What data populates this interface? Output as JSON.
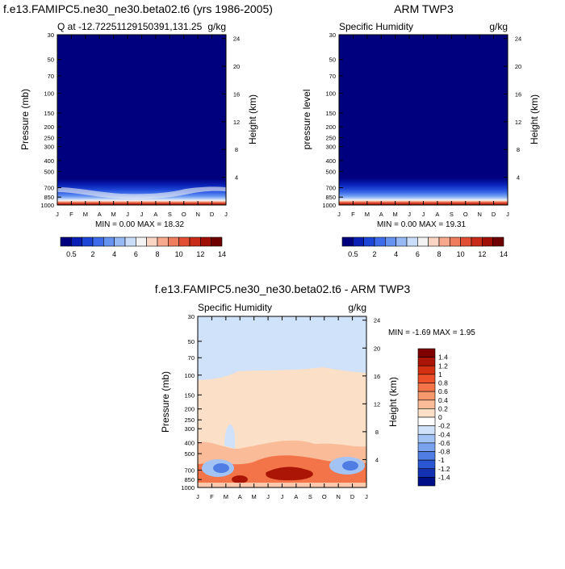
{
  "chart_data": [
    {
      "type": "heatmap",
      "title": "f.e13.FAMIPC5.ne30_ne30.beta02.t6 (yrs 1986-2005)",
      "left_label": "Q at -12.72251129150391,131.25",
      "right_label": "g/kg",
      "ylabel": "Pressure (mb)",
      "ylabel_right": "Height (km)",
      "months": [
        "J",
        "F",
        "M",
        "A",
        "M",
        "J",
        "J",
        "A",
        "S",
        "O",
        "N",
        "D",
        "J"
      ],
      "pressure_ticks": [
        "30",
        "50",
        "70",
        "100",
        "150",
        "200",
        "250",
        "300",
        "400",
        "500",
        "700",
        "850",
        "1000"
      ],
      "height_ticks": [
        "24",
        "20",
        "16",
        "12",
        "8",
        "4"
      ],
      "minmax": "MIN =   0.00 MAX =  18.32",
      "colorbar_labels": [
        "0.5",
        "2",
        "4",
        "6",
        "8",
        "10",
        "12",
        "14"
      ],
      "colorbar_colors": [
        "#00007f",
        "#0a1fb4",
        "#1d45d6",
        "#3d6be9",
        "#6693f0",
        "#96b9f4",
        "#c9dcf8",
        "#f3f3f3",
        "#fad5c4",
        "#f6a98c",
        "#f07c5e",
        "#e24e33",
        "#c82b18",
        "#a00f05",
        "#6e0000"
      ],
      "surface_max_value": 18.32
    },
    {
      "type": "heatmap",
      "title": "ARM TWP3",
      "left_label": "Specific Humidity",
      "right_label": "g/kg",
      "ylabel": "pressure level",
      "ylabel_right": "Height (km)",
      "months": [
        "J",
        "F",
        "M",
        "A",
        "M",
        "J",
        "J",
        "A",
        "S",
        "O",
        "N",
        "D",
        "J"
      ],
      "pressure_ticks": [
        "30",
        "50",
        "70",
        "100",
        "150",
        "200",
        "250",
        "300",
        "400",
        "500",
        "700",
        "850",
        "1000"
      ],
      "height_ticks": [
        "24",
        "20",
        "16",
        "12",
        "8",
        "4"
      ],
      "minmax": "MIN =   0.00 MAX =  19.31",
      "colorbar_labels": [
        "0.5",
        "2",
        "4",
        "6",
        "8",
        "10",
        "12",
        "14"
      ],
      "surface_max_value": 19.31
    },
    {
      "type": "heatmap",
      "title": "f.e13.FAMIPC5.ne30_ne30.beta02.t6 - ARM TWP3",
      "left_label": "Specific Humidity",
      "right_label": "g/kg",
      "ylabel": "Pressure (mb)",
      "ylabel_right": "Height (km)",
      "months": [
        "J",
        "F",
        "M",
        "A",
        "M",
        "J",
        "J",
        "A",
        "S",
        "O",
        "N",
        "D",
        "J"
      ],
      "pressure_ticks": [
        "30",
        "50",
        "70",
        "100",
        "150",
        "200",
        "250",
        "300",
        "400",
        "500",
        "700",
        "850",
        "1000"
      ],
      "height_ticks": [
        "24",
        "20",
        "16",
        "12",
        "8",
        "4"
      ],
      "minmax": "MIN =  -1.69 MAX =   1.95",
      "colorbar_labels": [
        "1.4",
        "1.2",
        "1",
        "0.8",
        "0.6",
        "0.4",
        "0.2",
        "0",
        "-0.2",
        "-0.4",
        "-0.6",
        "-0.8",
        "-1",
        "-1.2",
        "-1.4"
      ],
      "colorbar_colors": [
        "#7f0000",
        "#aa1505",
        "#d2300e",
        "#ec5028",
        "#f37448",
        "#f6986c",
        "#f9bb98",
        "#fcdfc7",
        "#ffffff",
        "#cfe2fa",
        "#a3c3f5",
        "#7aa2ee",
        "#4f7de4",
        "#2b56d1",
        "#1232b2",
        "#000f85"
      ],
      "diff_min": -1.69,
      "diff_max": 1.95
    }
  ]
}
